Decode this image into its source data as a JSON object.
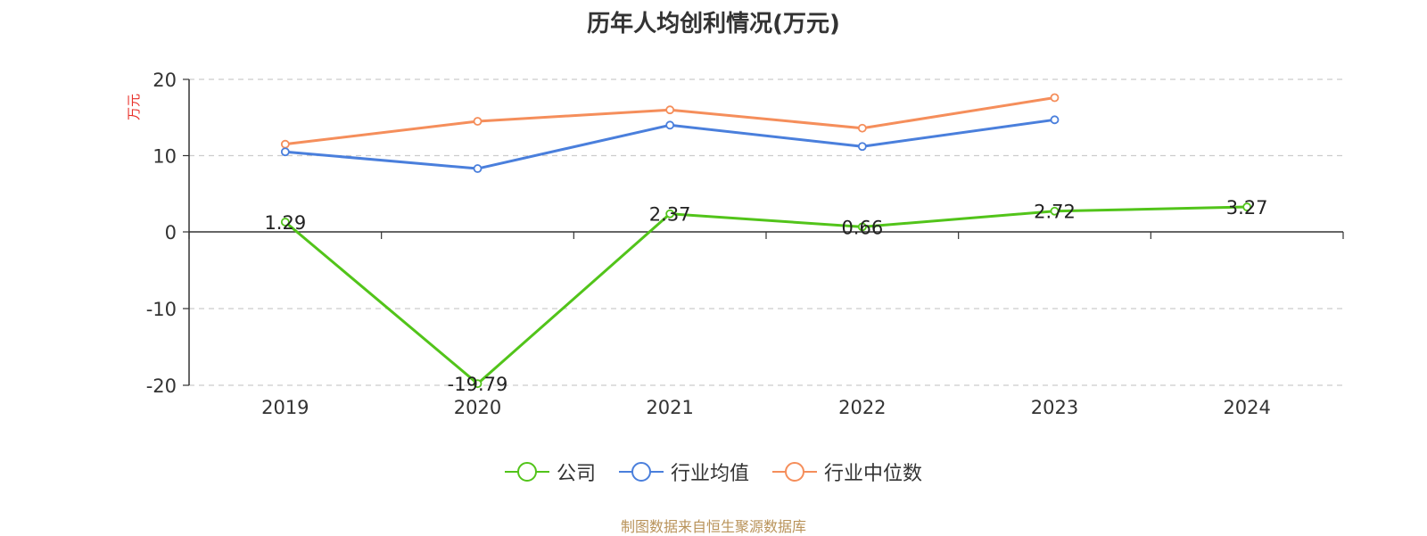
{
  "colors": {
    "company": "#52c41a",
    "industry_avg": "#4a7fdc",
    "industry_median": "#f58e5b",
    "axis_title": "#e8302a",
    "source": "#b9935a"
  },
  "source_note": "制图数据来自恒生聚源数据库",
  "chart_data": {
    "type": "line",
    "title": "历年人均创利情况(万元)",
    "ylabel": "万元",
    "xlabel": "",
    "categories": [
      "2019",
      "2020",
      "2021",
      "2022",
      "2023",
      "2024"
    ],
    "ylim": [
      -20,
      20
    ],
    "yticks": [
      20,
      10,
      0,
      -10,
      -20
    ],
    "ytick_labels": [
      "20",
      "10",
      "0",
      "-10",
      "-20"
    ],
    "grid": true,
    "legend_position": "bottom",
    "series": [
      {
        "name": "公司",
        "key": "company",
        "values": [
          1.29,
          -19.79,
          2.37,
          0.66,
          2.72,
          3.27
        ],
        "labels": [
          "1.29",
          "-19.79",
          "2.37",
          "0.66",
          "2.72",
          "3.27"
        ]
      },
      {
        "name": "行业均值",
        "key": "industry_avg",
        "values": [
          10.5,
          8.3,
          14.0,
          11.2,
          14.7,
          null
        ]
      },
      {
        "name": "行业中位数",
        "key": "industry_median",
        "values": [
          11.5,
          14.5,
          16.0,
          13.6,
          17.6,
          null
        ]
      }
    ]
  }
}
